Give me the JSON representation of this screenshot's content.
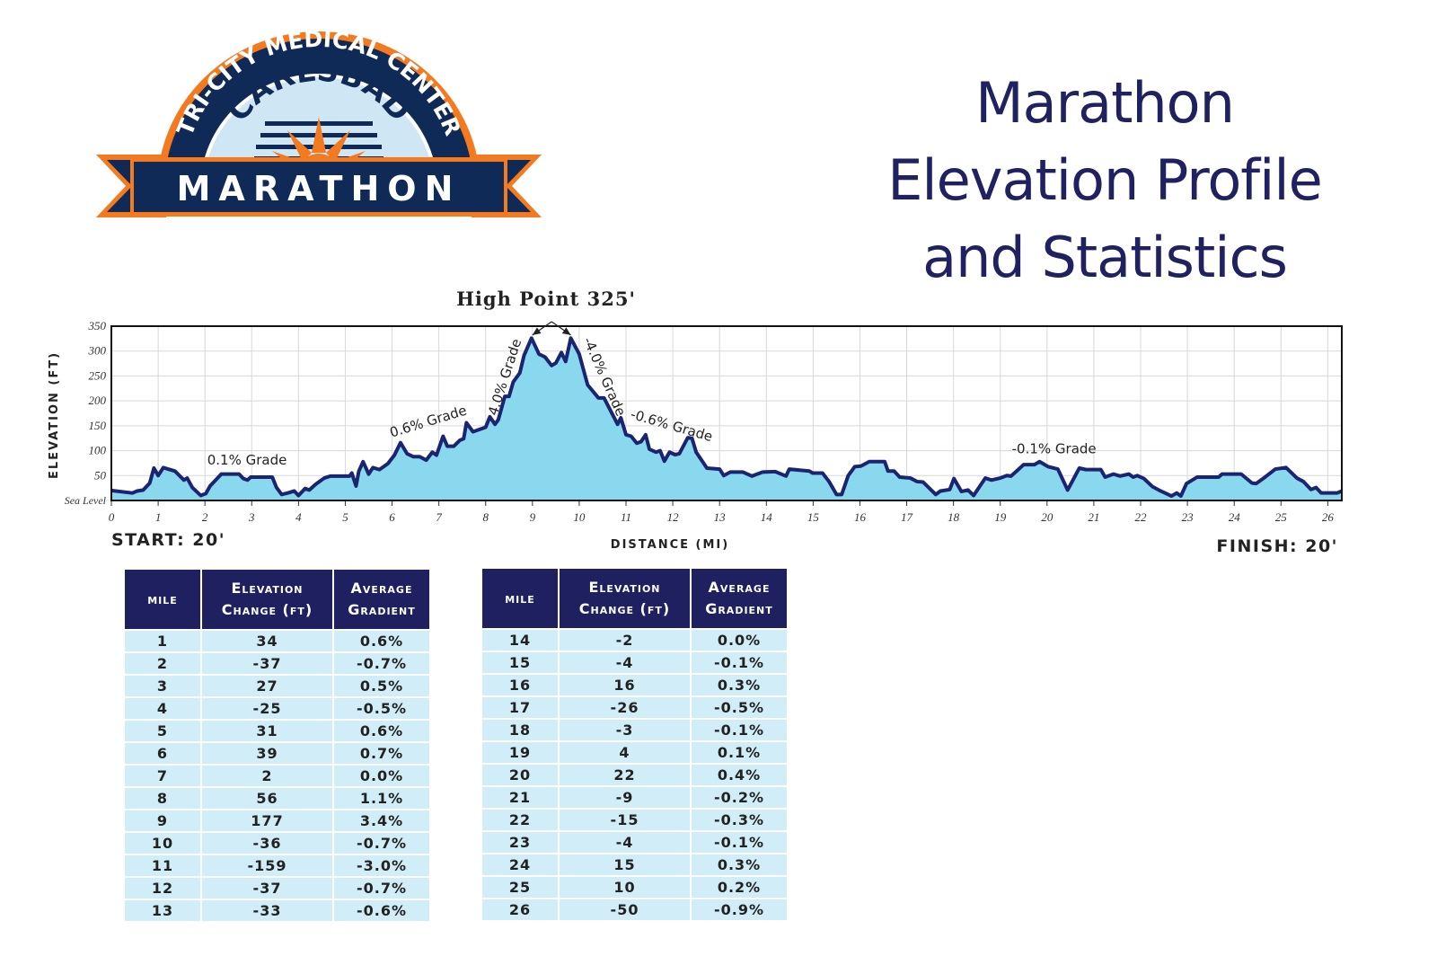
{
  "logo": {
    "ring_text": "TRI-CITY MEDICAL CENTER",
    "city": "CARLSBAD",
    "banner": "MARATHON",
    "colors": {
      "navy": "#0f2a57",
      "orange": "#f47a20",
      "light_blue": "#cfe6f5"
    }
  },
  "title": {
    "line1": "Marathon",
    "line2": "Elevation Profile",
    "line3": "and Statistics",
    "color": "#1f2160"
  },
  "chart_data": {
    "type": "area",
    "high_point_label": "High Point 325'",
    "start_label": "START: 20'",
    "finish_label": "FINISH: 20'",
    "xlabel": "DISTANCE (MI)",
    "ylabel": "ELEVATION (FT)",
    "xlim": [
      0,
      26.3
    ],
    "ylim": [
      0,
      350
    ],
    "xticks": [
      "0",
      "1",
      "2",
      "3",
      "4",
      "5",
      "6",
      "7",
      "8",
      "9",
      "10",
      "11",
      "12",
      "13",
      "14",
      "15",
      "16",
      "17",
      "18",
      "19",
      "20",
      "21",
      "22",
      "23",
      "24",
      "25",
      "26"
    ],
    "yticks": [
      {
        "v": 0,
        "label": "Sea Level"
      },
      {
        "v": 50,
        "label": "50"
      },
      {
        "v": 100,
        "label": "100"
      },
      {
        "v": 150,
        "label": "150"
      },
      {
        "v": 200,
        "label": "200"
      },
      {
        "v": 250,
        "label": "250"
      },
      {
        "v": 300,
        "label": "300"
      },
      {
        "v": 350,
        "label": "350"
      }
    ],
    "grid": true,
    "fill_color": "#8ad8ee",
    "line_color": "#1b2470",
    "annotations": [
      {
        "text": "0.1% Grade",
        "x": 2.9,
        "y": 72
      },
      {
        "text": "0.6% Grade",
        "x": 6.8,
        "y": 150
      },
      {
        "text": "4.0% Grade",
        "x": 8.5,
        "y": 245
      },
      {
        "text": "-4.0% Grade",
        "x": 10.45,
        "y": 245
      },
      {
        "text": "-0.6% Grade",
        "x": 11.95,
        "y": 142
      },
      {
        "text": "-0.1% Grade",
        "x": 20.15,
        "y": 95
      }
    ],
    "high_point": {
      "x": [
        9.0,
        9.82
      ],
      "y": 325
    },
    "points": [
      [
        0,
        20
      ],
      [
        0.45,
        15
      ],
      [
        0.55,
        19
      ],
      [
        0.68,
        21
      ],
      [
        0.82,
        35
      ],
      [
        0.91,
        65
      ],
      [
        1.0,
        50
      ],
      [
        1.11,
        66
      ],
      [
        1.36,
        59
      ],
      [
        1.55,
        41
      ],
      [
        1.62,
        45
      ],
      [
        1.73,
        26
      ],
      [
        1.91,
        10
      ],
      [
        2.02,
        14
      ],
      [
        2.11,
        29
      ],
      [
        2.35,
        53
      ],
      [
        2.73,
        53
      ],
      [
        2.82,
        44
      ],
      [
        2.91,
        41
      ],
      [
        2.98,
        47
      ],
      [
        3.44,
        47
      ],
      [
        3.53,
        26
      ],
      [
        3.64,
        12
      ],
      [
        3.77,
        15
      ],
      [
        3.91,
        19
      ],
      [
        4.0,
        10
      ],
      [
        4.14,
        24
      ],
      [
        4.23,
        21
      ],
      [
        4.36,
        32
      ],
      [
        4.55,
        45
      ],
      [
        4.68,
        49
      ],
      [
        5.09,
        49
      ],
      [
        5.14,
        55
      ],
      [
        5.23,
        29
      ],
      [
        5.29,
        59
      ],
      [
        5.38,
        78
      ],
      [
        5.5,
        53
      ],
      [
        5.59,
        66
      ],
      [
        5.73,
        62
      ],
      [
        5.91,
        74
      ],
      [
        6.05,
        91
      ],
      [
        6.18,
        116
      ],
      [
        6.32,
        94
      ],
      [
        6.45,
        88
      ],
      [
        6.59,
        88
      ],
      [
        6.73,
        81
      ],
      [
        6.86,
        97
      ],
      [
        6.95,
        91
      ],
      [
        7.09,
        129
      ],
      [
        7.18,
        109
      ],
      [
        7.32,
        109
      ],
      [
        7.45,
        121
      ],
      [
        7.53,
        124
      ],
      [
        7.59,
        156
      ],
      [
        7.73,
        138
      ],
      [
        8.0,
        147
      ],
      [
        8.09,
        168
      ],
      [
        8.2,
        153
      ],
      [
        8.27,
        162
      ],
      [
        8.41,
        209
      ],
      [
        8.5,
        209
      ],
      [
        8.59,
        238
      ],
      [
        8.73,
        256
      ],
      [
        8.82,
        291
      ],
      [
        8.98,
        326
      ],
      [
        9.14,
        294
      ],
      [
        9.27,
        288
      ],
      [
        9.41,
        271
      ],
      [
        9.5,
        276
      ],
      [
        9.62,
        297
      ],
      [
        9.71,
        279
      ],
      [
        9.82,
        326
      ],
      [
        10.0,
        294
      ],
      [
        10.18,
        232
      ],
      [
        10.41,
        206
      ],
      [
        10.53,
        206
      ],
      [
        10.82,
        153
      ],
      [
        10.89,
        166
      ],
      [
        11.0,
        132
      ],
      [
        11.11,
        129
      ],
      [
        11.23,
        115
      ],
      [
        11.32,
        118
      ],
      [
        11.42,
        132
      ],
      [
        11.5,
        103
      ],
      [
        11.64,
        97
      ],
      [
        11.73,
        100
      ],
      [
        11.82,
        79
      ],
      [
        11.93,
        97
      ],
      [
        12.05,
        92
      ],
      [
        12.14,
        94
      ],
      [
        12.32,
        126
      ],
      [
        12.41,
        125
      ],
      [
        12.5,
        97
      ],
      [
        12.73,
        65
      ],
      [
        13.0,
        63
      ],
      [
        13.09,
        50
      ],
      [
        13.23,
        57
      ],
      [
        13.5,
        57
      ],
      [
        13.69,
        49
      ],
      [
        13.92,
        57
      ],
      [
        14.19,
        58
      ],
      [
        14.42,
        49
      ],
      [
        14.49,
        63
      ],
      [
        14.92,
        59
      ],
      [
        14.99,
        55
      ],
      [
        15.2,
        55
      ],
      [
        15.34,
        38
      ],
      [
        15.5,
        12
      ],
      [
        15.61,
        12
      ],
      [
        15.75,
        50
      ],
      [
        15.89,
        68
      ],
      [
        16.02,
        69
      ],
      [
        16.2,
        78
      ],
      [
        16.53,
        78
      ],
      [
        16.6,
        59
      ],
      [
        16.73,
        59
      ],
      [
        16.85,
        47
      ],
      [
        17.08,
        45
      ],
      [
        17.22,
        38
      ],
      [
        17.35,
        37
      ],
      [
        17.62,
        12
      ],
      [
        17.72,
        19
      ],
      [
        17.92,
        22
      ],
      [
        18.01,
        44
      ],
      [
        18.17,
        18
      ],
      [
        18.31,
        21
      ],
      [
        18.43,
        10
      ],
      [
        18.68,
        45
      ],
      [
        18.81,
        41
      ],
      [
        19.0,
        45
      ],
      [
        19.14,
        50
      ],
      [
        19.23,
        49
      ],
      [
        19.35,
        59
      ],
      [
        19.5,
        72
      ],
      [
        19.73,
        72
      ],
      [
        19.84,
        78
      ],
      [
        20.02,
        68
      ],
      [
        20.23,
        63
      ],
      [
        20.44,
        21
      ],
      [
        20.69,
        65
      ],
      [
        20.83,
        62
      ],
      [
        21.15,
        62
      ],
      [
        21.24,
        47
      ],
      [
        21.42,
        53
      ],
      [
        21.56,
        49
      ],
      [
        21.75,
        53
      ],
      [
        21.84,
        47
      ],
      [
        21.93,
        50
      ],
      [
        22.07,
        44
      ],
      [
        22.25,
        28
      ],
      [
        22.43,
        19
      ],
      [
        22.66,
        9
      ],
      [
        22.77,
        15
      ],
      [
        22.86,
        9
      ],
      [
        22.98,
        34
      ],
      [
        23.21,
        47
      ],
      [
        23.67,
        47
      ],
      [
        23.74,
        53
      ],
      [
        24.15,
        53
      ],
      [
        24.38,
        35
      ],
      [
        24.47,
        34
      ],
      [
        24.66,
        47
      ],
      [
        24.88,
        63
      ],
      [
        25.11,
        66
      ],
      [
        25.34,
        45
      ],
      [
        25.48,
        38
      ],
      [
        25.64,
        22
      ],
      [
        25.75,
        26
      ],
      [
        25.86,
        15
      ],
      [
        26.2,
        15
      ],
      [
        26.3,
        19
      ]
    ]
  },
  "tables": {
    "headers": {
      "mile": "mile",
      "elev_1": "Elevation",
      "elev_2": "Change (ft)",
      "grad_1": "Average",
      "grad_2": "Gradient"
    },
    "left": [
      [
        "1",
        "34",
        "0.6%"
      ],
      [
        "2",
        "-37",
        "-0.7%"
      ],
      [
        "3",
        "27",
        "0.5%"
      ],
      [
        "4",
        "-25",
        "-0.5%"
      ],
      [
        "5",
        "31",
        "0.6%"
      ],
      [
        "6",
        "39",
        "0.7%"
      ],
      [
        "7",
        "2",
        "0.0%"
      ],
      [
        "8",
        "56",
        "1.1%"
      ],
      [
        "9",
        "177",
        "3.4%"
      ],
      [
        "10",
        "-36",
        "-0.7%"
      ],
      [
        "11",
        "-159",
        "-3.0%"
      ],
      [
        "12",
        "-37",
        "-0.7%"
      ],
      [
        "13",
        "-33",
        "-0.6%"
      ]
    ],
    "right": [
      [
        "14",
        "-2",
        "0.0%"
      ],
      [
        "15",
        "-4",
        "-0.1%"
      ],
      [
        "16",
        "16",
        "0.3%"
      ],
      [
        "17",
        "-26",
        "-0.5%"
      ],
      [
        "18",
        "-3",
        "-0.1%"
      ],
      [
        "19",
        "4",
        "0.1%"
      ],
      [
        "20",
        "22",
        "0.4%"
      ],
      [
        "21",
        "-9",
        "-0.2%"
      ],
      [
        "22",
        "-15",
        "-0.3%"
      ],
      [
        "23",
        "-4",
        "-0.1%"
      ],
      [
        "24",
        "15",
        "0.3%"
      ],
      [
        "25",
        "10",
        "0.2%"
      ],
      [
        "26",
        "-50",
        "-0.9%"
      ]
    ]
  }
}
